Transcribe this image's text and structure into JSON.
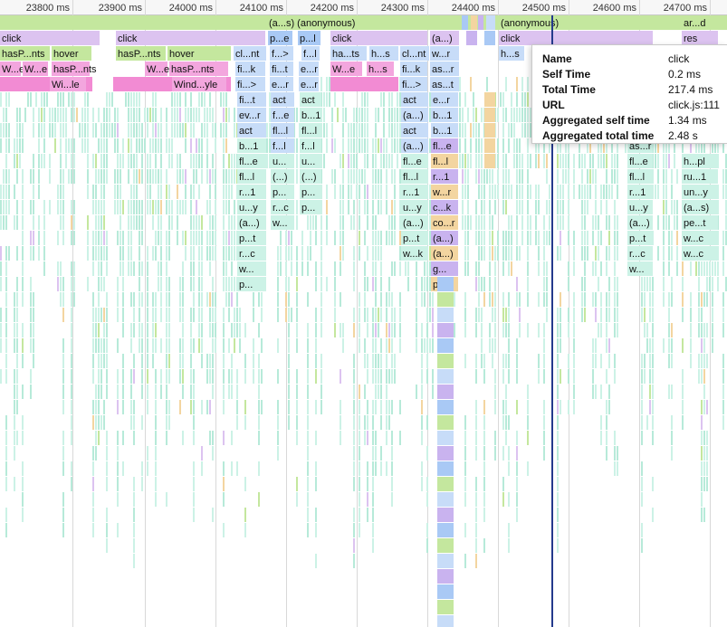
{
  "timeline": {
    "ruler_labels": [
      "23800 ms",
      "23900 ms",
      "24000 ms",
      "24100 ms",
      "24200 ms",
      "24300 ms",
      "24400 ms",
      "24500 ms",
      "24600 ms",
      "24700 ms"
    ]
  },
  "colors": {
    "green": "#c4e79e",
    "lilac": "#dcc3f0",
    "pink": "#f3a6de",
    "magenta": "#f28bd3",
    "blue": "#a9c9f5",
    "lightblue": "#c7dcf8",
    "teal": "#b7ead9",
    "mint": "#ccf2e6",
    "orange": "#f3d5a0",
    "purple": "#c9b3ef",
    "gridline": "#d8d8d8",
    "cursor": "#243a8c"
  },
  "flame_labels": [
    "(a...s) (anonymous)",
    "(anonymous)",
    "ar...d",
    "res",
    "click",
    "hasP...nts",
    "hover",
    "W...e",
    "Wi...le",
    "Wind...yle",
    "cl...nt",
    "fi...k",
    "fi...>",
    "fi...t",
    "ev...r",
    "act",
    "b...1",
    "fl...e",
    "fl...l",
    "r...1",
    "u...y",
    "(a...)",
    "p...t",
    "r...c",
    "w...",
    "p...",
    "p...e",
    "p...l",
    "f...>",
    "fi...t",
    "e...r",
    "f...e",
    "fl...l",
    "f...l",
    "u...",
    "(...)",
    "p...",
    "r...c",
    "w...",
    "ha...ts",
    "h...s",
    "w...r",
    "as...r",
    "as...t",
    "e...r",
    "b...1",
    "fl...e",
    "fl...l",
    "r...1",
    "u...y",
    "(a...)",
    "p...t",
    "w...k",
    "(a...)",
    "w...r",
    "c...k",
    "r...d",
    "co...r",
    "g...",
    "p...",
    "h...s",
    "h...pl",
    "ru...1",
    "un...y",
    "(a...s)",
    "pe...t",
    "w...c",
    "as...r",
    "(a...)"
  ],
  "tooltip": {
    "rows": [
      {
        "key": "Name",
        "value": "click"
      },
      {
        "key": "Self Time",
        "value": "0.2 ms"
      },
      {
        "key": "Total Time",
        "value": "217.4 ms"
      },
      {
        "key": "URL",
        "value": "click.js:111"
      },
      {
        "key": "Aggregated self time",
        "value": "1.34 ms"
      },
      {
        "key": "Aggregated total time",
        "value": "2.48 s"
      }
    ]
  }
}
